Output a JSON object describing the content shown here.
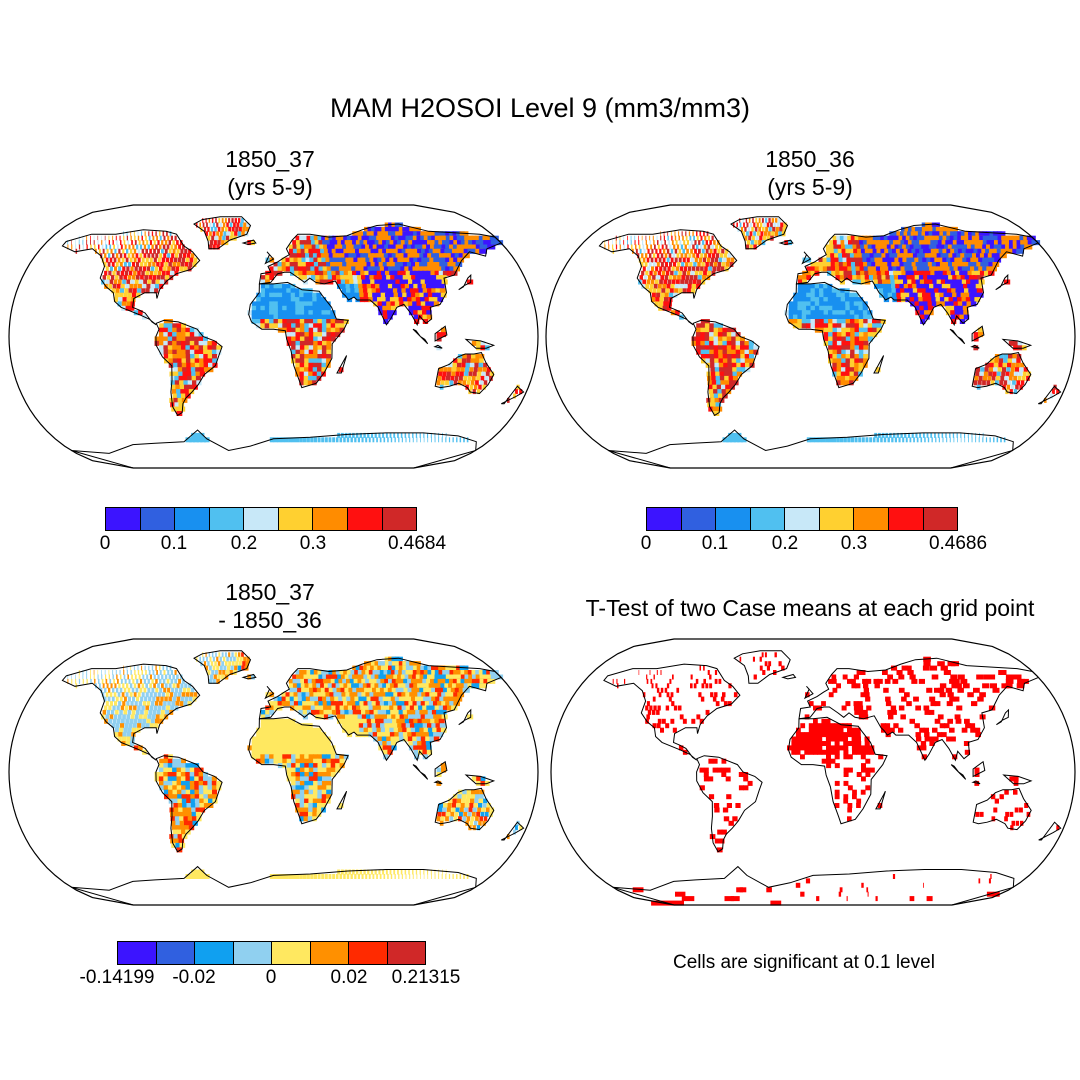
{
  "figure": {
    "title": "MAM H2OSOI Level 9 (mm3/mm3)"
  },
  "panels": [
    {
      "id": "case1",
      "title_line1": "1850_37",
      "title_line2": "(yrs 5-9)"
    },
    {
      "id": "case2",
      "title_line1": "1850_36",
      "title_line2": "(yrs 5-9)"
    },
    {
      "id": "diff",
      "title_line1": "1850_37",
      "title_line2": "- 1850_36"
    },
    {
      "id": "ttest",
      "title_line1": "T-Test of two Case means at each grid point"
    }
  ],
  "colorbars": {
    "case1": {
      "colors": [
        "#3c14ff",
        "#3060e0",
        "#1890f0",
        "#50c0f0",
        "#c8e8f8",
        "#ffd030",
        "#ff8c00",
        "#ff1010",
        "#d02828"
      ],
      "labels": [
        "0",
        "0.1",
        "0.2",
        "0.3",
        "0.4684"
      ]
    },
    "case2": {
      "colors": [
        "#3c14ff",
        "#3060e0",
        "#1890f0",
        "#50c0f0",
        "#c8e8f8",
        "#ffd030",
        "#ff8c00",
        "#ff1010",
        "#d02828"
      ],
      "labels": [
        "0",
        "0.1",
        "0.2",
        "0.3",
        "0.4686"
      ]
    },
    "diff": {
      "colors": [
        "#3c14ff",
        "#3060e0",
        "#10a0f0",
        "#90d0f0",
        "#ffe860",
        "#ff9000",
        "#ff2a00",
        "#d02828"
      ],
      "labels": [
        "-0.14199",
        "-0.02",
        "0",
        "0.02",
        "0.21315"
      ]
    }
  },
  "significance_note": "Cells are significant at 0.1 level",
  "significance_color": "#ff0000"
}
